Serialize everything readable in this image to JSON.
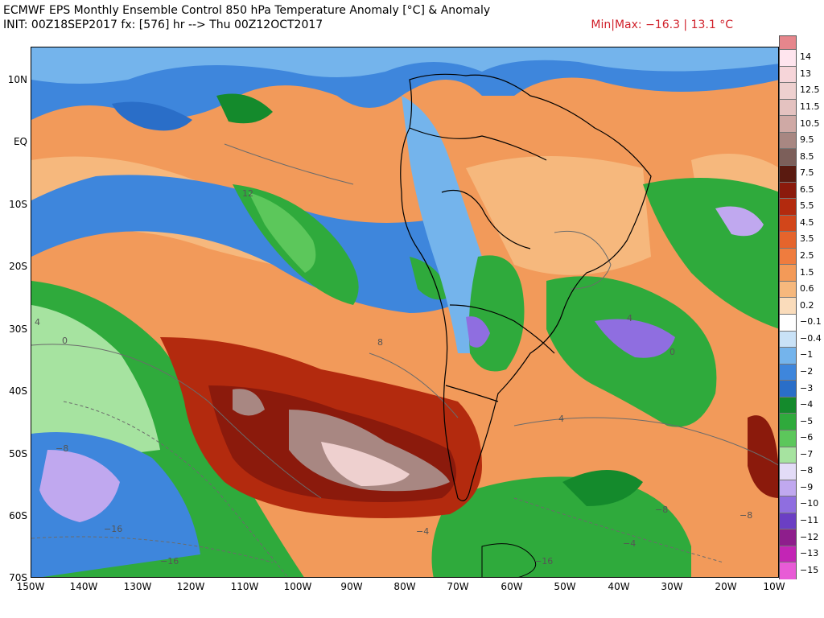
{
  "header": {
    "title": "ECMWF EPS Monthly Ensemble Control 850 hPa Temperature Anomaly [°C] & Anomaly",
    "subtitle": "INIT: 00Z18SEP2017 fx: [576] hr --> Thu 00Z12OCT2017",
    "minmax": "Min|Max: −16.3 | 13.1 °C"
  },
  "map": {
    "region": "South America and surrounding Pacific/Atlantic",
    "lat_labels": [
      "10N",
      "EQ",
      "10S",
      "20S",
      "30S",
      "40S",
      "50S",
      "60S",
      "70S"
    ],
    "lon_labels": [
      "150W",
      "140W",
      "130W",
      "120W",
      "110W",
      "100W",
      "90W",
      "80W",
      "70W",
      "60W",
      "50W",
      "40W",
      "30W",
      "20W",
      "10W"
    ],
    "contour_labels": [
      "0",
      "4",
      "8",
      "12",
      "4",
      "0",
      "−4",
      "−8",
      "−16",
      "−16",
      "−8",
      "−4",
      "4",
      "−16",
      "−8"
    ]
  },
  "colorbar": {
    "levels": [
      {
        "label": "14",
        "color": "#ffe5ee"
      },
      {
        "label": "13",
        "color": "#f6d5d9"
      },
      {
        "label": "12.5",
        "color": "#eed0cf"
      },
      {
        "label": "11.5",
        "color": "#e4c2c0"
      },
      {
        "label": "10.5",
        "color": "#cfa9a5"
      },
      {
        "label": "9.5",
        "color": "#a88782"
      },
      {
        "label": "8.5",
        "color": "#7c5f5a"
      },
      {
        "label": "7.5",
        "color": "#5a1a10"
      },
      {
        "label": "6.5",
        "color": "#8b1a0c"
      },
      {
        "label": "5.5",
        "color": "#b32a0e"
      },
      {
        "label": "4.5",
        "color": "#d2461a"
      },
      {
        "label": "3.5",
        "color": "#e5642c"
      },
      {
        "label": "2.5",
        "color": "#ef7c3e"
      },
      {
        "label": "1.5",
        "color": "#f39a58"
      },
      {
        "label": "0.6",
        "color": "#f6b87d"
      },
      {
        "label": "0.2",
        "color": "#fadcbb"
      },
      {
        "label": "−0.1",
        "color": "#ffffff"
      },
      {
        "label": "−0.4",
        "color": "#c9e2f7"
      },
      {
        "label": "−1",
        "color": "#74b4ec"
      },
      {
        "label": "−2",
        "color": "#3e86dc"
      },
      {
        "label": "−3",
        "color": "#2a6ec8"
      },
      {
        "label": "−4",
        "color": "#148a2c"
      },
      {
        "label": "−5",
        "color": "#2faa3c"
      },
      {
        "label": "−6",
        "color": "#5cc75b"
      },
      {
        "label": "−7",
        "color": "#a6e3a0"
      },
      {
        "label": "−8",
        "color": "#e3dcf7"
      },
      {
        "label": "−9",
        "color": "#c0a8ef"
      },
      {
        "label": "−10",
        "color": "#8f6ee0"
      },
      {
        "label": "−11",
        "color": "#6b3fc4"
      },
      {
        "label": "−12",
        "color": "#8e1e8c"
      },
      {
        "label": "−13",
        "color": "#c325b5"
      },
      {
        "label": "−15",
        "color": "#e85bd6"
      }
    ],
    "top_color": "#e6868c"
  },
  "colors": {
    "orange_bg": "#f29a5a",
    "coast": "#000000",
    "contour": "#6b6b6b"
  }
}
